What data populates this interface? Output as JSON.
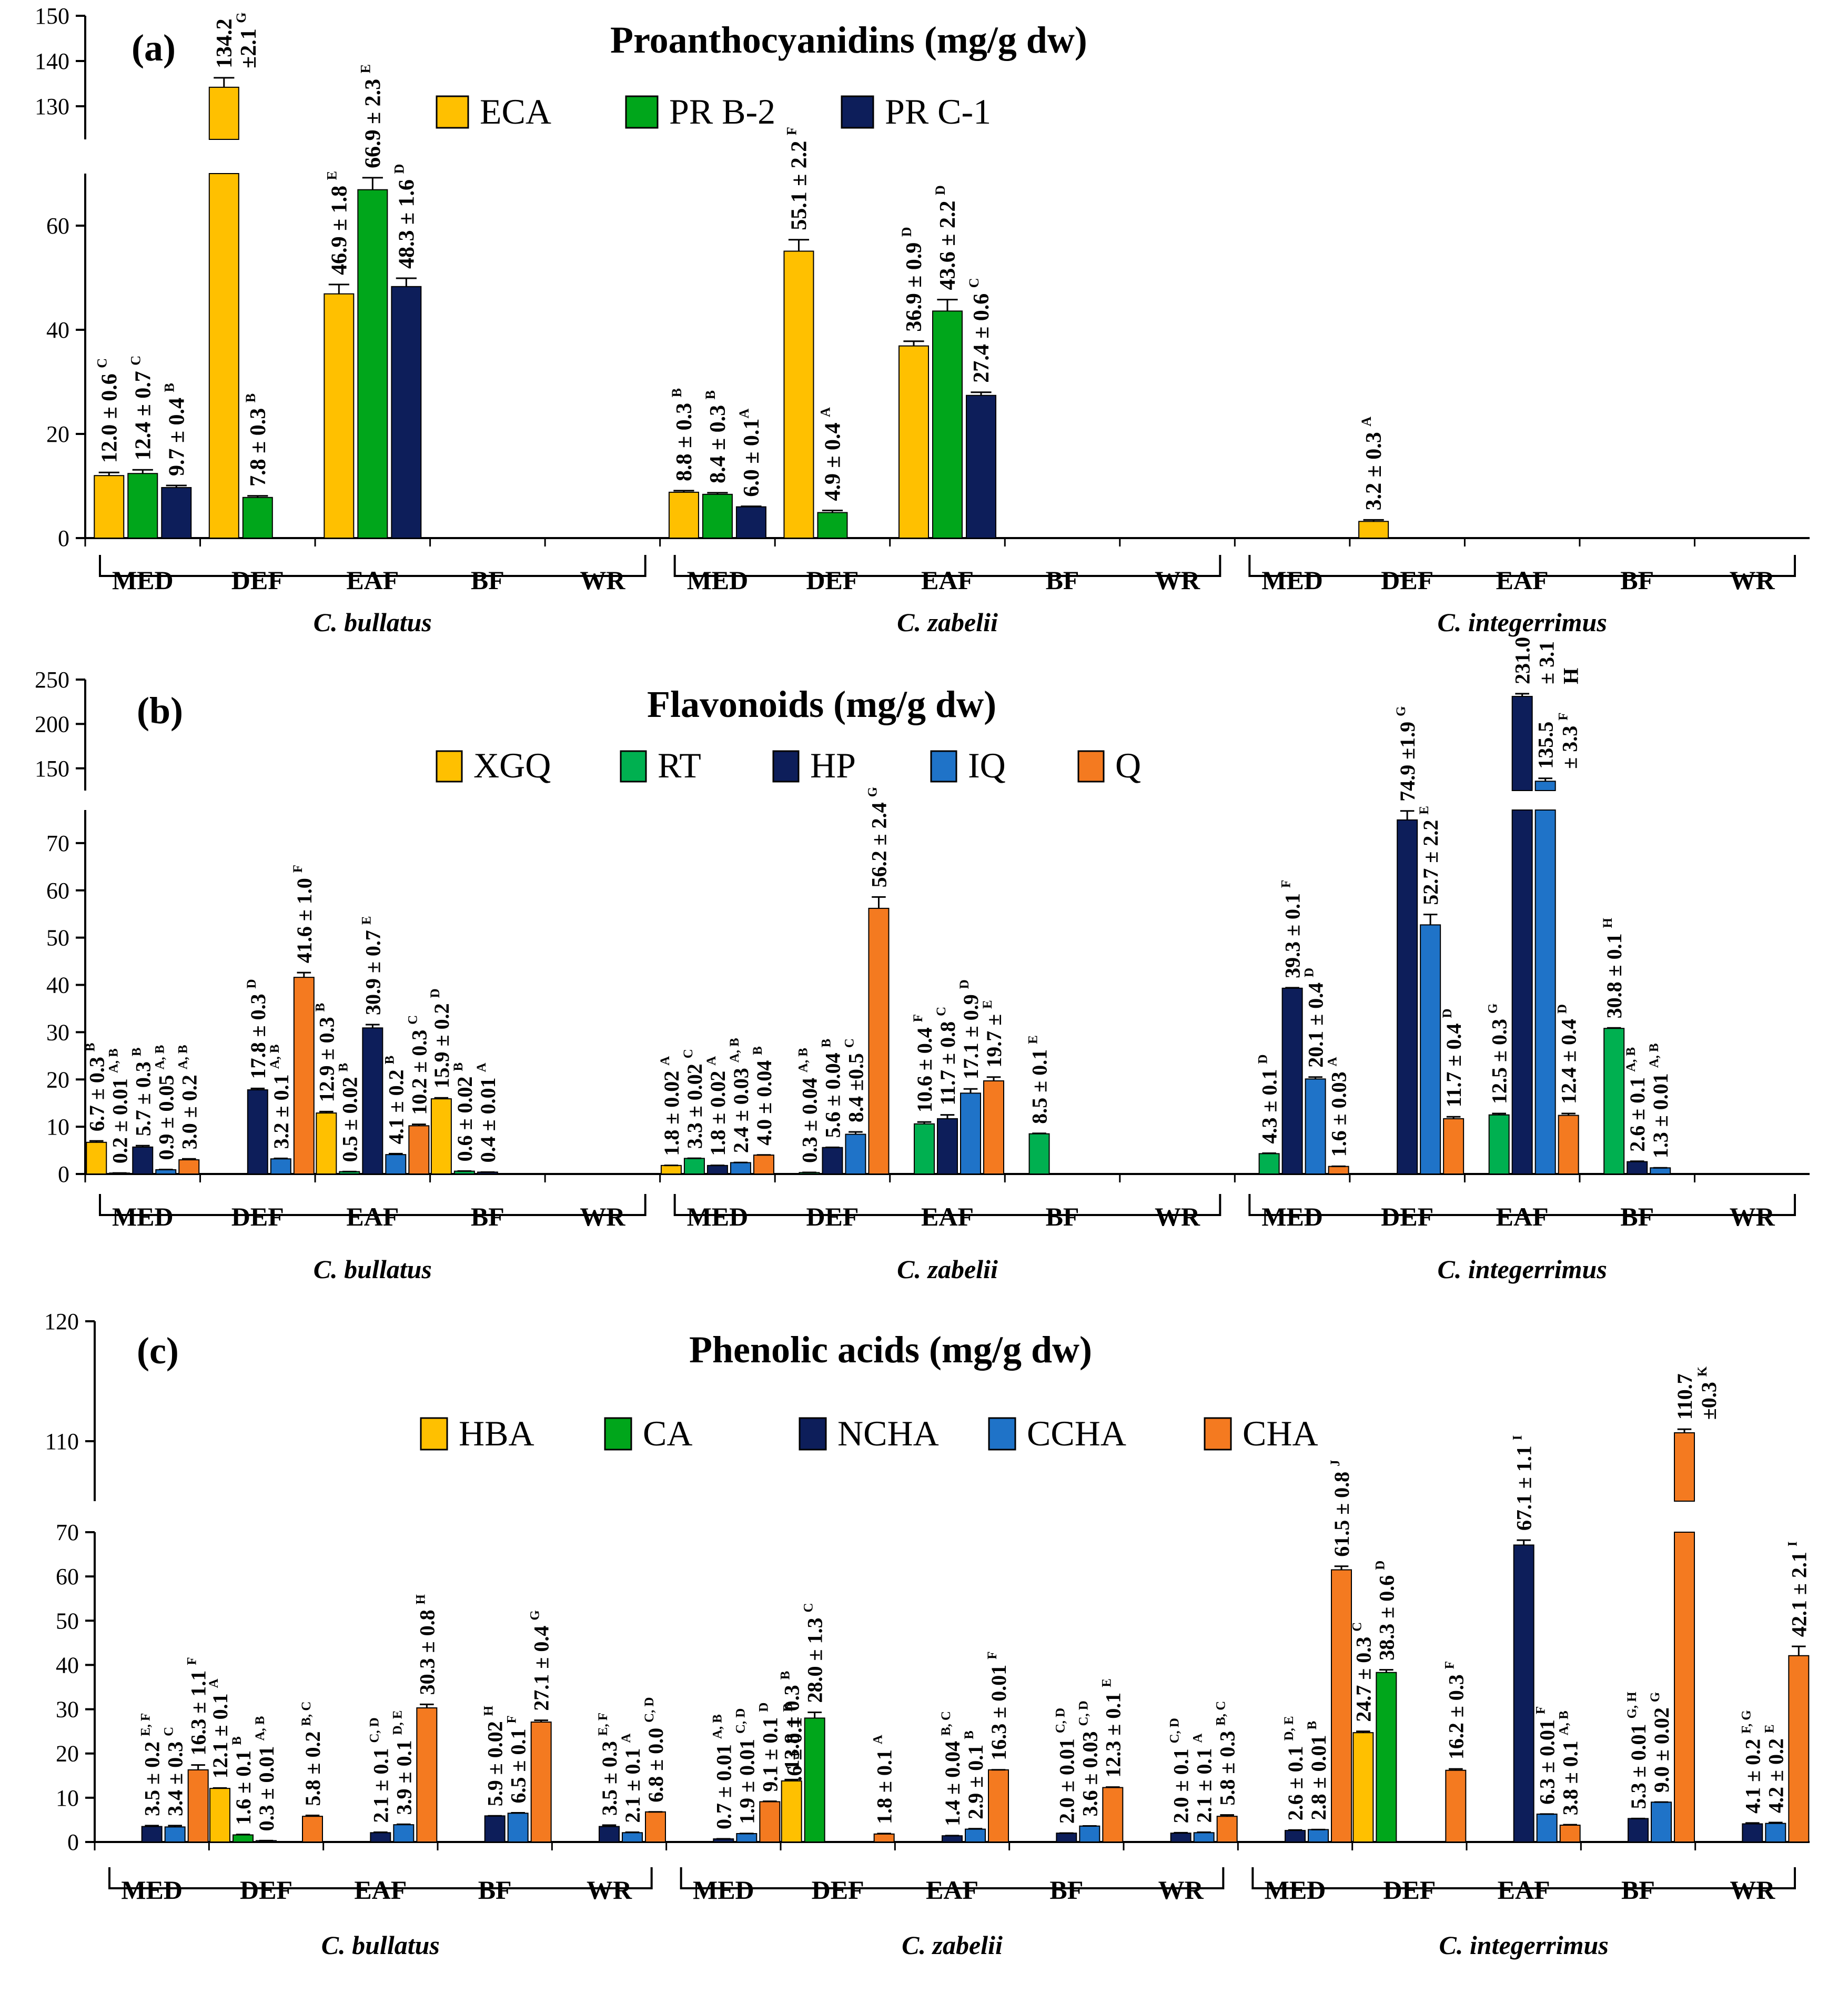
{
  "colors": {
    "ECA": "#FFC000",
    "PRB2": "#00A61B",
    "PRC1": "#0D1E5A",
    "XGQ": "#FFC000",
    "RT": "#00B050",
    "HP": "#0D1E5A",
    "IQ": "#1F73C8",
    "Q": "#F47A20",
    "HBA": "#FFC000",
    "CA": "#00A61B",
    "NCHA": "#0D1E5A",
    "CCHA": "#1F73C8",
    "CHA": "#F47A20"
  },
  "chart_data": [
    {
      "type": "bar",
      "panel": "(a)",
      "title": "Proanthocyanidins (mg/g dw)",
      "legend_position": "top-center",
      "fractions": [
        "MED",
        "DEF",
        "EAF",
        "BF",
        "WR"
      ],
      "groups": [
        "C. bullatus",
        "C. zabelii",
        "C. integerrimus"
      ],
      "yticks_lower": [
        "0",
        "20",
        "40",
        "60"
      ],
      "yticks_upper": [
        "130",
        "140",
        "150"
      ],
      "series": [
        {
          "name": "ECA",
          "color_key": "ECA",
          "values": [
            12.0,
            134.2,
            46.9,
            null,
            null,
            8.8,
            55.1,
            36.9,
            null,
            null,
            null,
            3.2,
            null,
            null,
            null
          ],
          "errors": [
            0.6,
            2.1,
            1.8,
            null,
            null,
            0.3,
            2.2,
            0.9,
            null,
            null,
            null,
            0.3,
            null,
            null,
            null
          ],
          "labels": [
            "12.0 ± 0.6 ^C",
            [
              "134.2",
              "±2.1 ^G"
            ],
            "46.9 ± 1.8 ^E",
            null,
            null,
            "8.8 ± 0.3 ^B",
            "55.1 ± 2.2 ^F",
            "36.9 ± 0.9 ^D",
            null,
            null,
            null,
            "3.2 ± 0.3 ^A",
            null,
            null,
            null
          ]
        },
        {
          "name": "PR B-2",
          "color_key": "PRB2",
          "values": [
            12.4,
            7.8,
            66.9,
            null,
            null,
            8.4,
            4.9,
            43.6,
            null,
            null,
            null,
            null,
            null,
            null,
            null
          ],
          "errors": [
            0.7,
            0.3,
            2.3,
            null,
            null,
            0.3,
            0.4,
            2.2,
            null,
            null,
            null,
            null,
            null,
            null,
            null
          ],
          "labels": [
            "12.4 ± 0.7 ^C",
            "7.8 ± 0.3 ^B",
            "66.9 ± 2.3 ^E",
            null,
            null,
            "8.4 ± 0.3 ^B",
            "4.9 ± 0.4 ^A",
            "43.6 ± 2.2 ^D",
            null,
            null,
            null,
            null,
            null,
            null,
            null
          ]
        },
        {
          "name": "PR C-1",
          "color_key": "PRC1",
          "values": [
            9.7,
            null,
            48.3,
            null,
            null,
            6.0,
            null,
            27.4,
            null,
            null,
            null,
            null,
            null,
            null,
            null
          ],
          "errors": [
            0.4,
            null,
            1.6,
            null,
            null,
            0.1,
            null,
            0.6,
            null,
            null,
            null,
            null,
            null,
            null,
            null
          ],
          "labels": [
            "9.7 ± 0.4 ^B",
            null,
            "48.3 ± 1.6 ^D",
            null,
            null,
            "6.0 ± 0.1^A",
            null,
            "27.4 ± 0.6 ^C",
            null,
            null,
            null,
            null,
            null,
            null,
            null
          ]
        }
      ]
    },
    {
      "type": "bar",
      "panel": "(b)",
      "title": "Flavonoids (mg/g dw)",
      "legend_position": "top-center",
      "fractions": [
        "MED",
        "DEF",
        "EAF",
        "BF",
        "WR"
      ],
      "groups": [
        "C. bullatus",
        "C. zabelii",
        "C. integerrimus"
      ],
      "yticks_lower": [
        "0",
        "10",
        "20",
        "30",
        "40",
        "50",
        "60",
        "70"
      ],
      "yticks_upper": [
        "150",
        "200",
        "250"
      ],
      "series": [
        {
          "name": "XGQ",
          "color_key": "XGQ",
          "values": [
            6.7,
            null,
            12.9,
            15.9,
            null,
            1.8,
            null,
            null,
            null,
            null,
            null,
            null,
            null,
            null,
            null
          ],
          "errors": [
            0.3,
            null,
            0.3,
            0.2,
            null,
            0.02,
            null,
            null,
            null,
            null,
            null,
            null,
            null,
            null,
            null
          ],
          "labels": [
            "6.7 ± 0.3 ^B",
            null,
            "12.9 ± 0.3 ^B",
            "15.9 ± 0.2 ^D",
            null,
            "1.8 ± 0.02 ^A",
            null,
            null,
            null,
            null,
            null,
            null,
            null,
            null,
            null
          ]
        },
        {
          "name": "RT",
          "color_key": "RT",
          "values": [
            0.2,
            null,
            0.5,
            0.6,
            null,
            3.3,
            0.3,
            10.6,
            8.5,
            null,
            4.3,
            null,
            12.5,
            30.8,
            null
          ],
          "errors": [
            0.01,
            null,
            0.02,
            0.02,
            null,
            0.02,
            0.04,
            0.4,
            0.1,
            null,
            0.1,
            null,
            0.3,
            0.1,
            null
          ],
          "labels": [
            "0.2 ± 0.01 ^A, B",
            null,
            "0.5 ± 0.02 ^B",
            "0.6 ± 0.02 ^B",
            null,
            "3.3 ± 0.02 ^C",
            "0.3 ± 0.04 ^A, B",
            "10.6 ± 0.4 ^F",
            "8.5 ± 0.1 ^E",
            null,
            "4.3 ± 0.1 ^D",
            null,
            "12.5 ± 0.3 ^G",
            "30.8 ± 0.1 ^H",
            null
          ]
        },
        {
          "name": "HP",
          "color_key": "HP",
          "values": [
            5.7,
            17.8,
            30.9,
            0.4,
            null,
            1.8,
            5.6,
            11.7,
            null,
            null,
            39.3,
            74.9,
            231.0,
            2.6,
            null
          ],
          "errors": [
            0.3,
            0.3,
            0.7,
            0.01,
            null,
            0.02,
            0.04,
            0.8,
            null,
            null,
            0.1,
            1.9,
            3.1,
            0.1,
            null
          ],
          "labels": [
            "5.7 ± 0.3 ^B",
            "17.8 ± 0.3 ^D",
            "30.9 ± 0.7 ^E",
            "0.4 ± 0.01 ^A",
            null,
            "1.8 ± 0.02 ^A",
            "5.6 ± 0.04 ^B",
            "11.7 ± 0.8 ^C",
            null,
            null,
            "39.3 ± 0.1 ^F",
            "74.9 ±1.9 ^G",
            [
              "231.0",
              "± 3.1",
              "H"
            ],
            "2.6 ± 0.1 ^A, B",
            null
          ]
        },
        {
          "name": "IQ",
          "color_key": "IQ",
          "values": [
            0.9,
            3.2,
            4.1,
            null,
            null,
            2.4,
            8.4,
            17.1,
            null,
            null,
            20.1,
            52.7,
            135.5,
            1.3,
            null
          ],
          "errors": [
            0.05,
            0.1,
            0.2,
            null,
            null,
            0.03,
            0.5,
            0.9,
            null,
            null,
            0.4,
            2.2,
            3.3,
            0.01,
            null
          ],
          "labels": [
            "0.9 ± 0.05 ^A, B",
            "3.2 ± 0.1 ^A, B",
            "4.1 ± 0.2 ^B",
            null,
            null,
            "2.4 ± 0.03 ^A, B",
            "8.4 ±0.5 ^C",
            "17.1 ± 0.9 ^D",
            null,
            null,
            "20.1 ± 0.4 ^D",
            "52.7 ± 2.2 ^E",
            [
              "135.5",
              "± 3.3 ^F"
            ],
            "1.3 ± 0.01 ^A, B",
            null
          ]
        },
        {
          "name": "Q",
          "color_key": "Q",
          "values": [
            3.0,
            41.6,
            10.2,
            null,
            null,
            4.0,
            56.2,
            19.7,
            null,
            null,
            1.6,
            11.7,
            12.4,
            null,
            null
          ],
          "errors": [
            0.2,
            1.0,
            0.3,
            null,
            null,
            0.04,
            2.4,
            0.8,
            null,
            null,
            0.03,
            0.4,
            0.4,
            null,
            null
          ],
          "labels": [
            "3.0 ± 0.2 ^A, B",
            "41.6 ± 1.0 ^F",
            "10.2 ± 0.3 ^C",
            null,
            null,
            "4.0 ± 0.04 ^B",
            "56.2 ± 2.4 ^G",
            "19.7 ± ^E",
            null,
            null,
            "1.6 ± 0.03 ^A",
            "11.7 ± 0.4 ^D",
            "12.4 ± 0.4 ^D",
            null,
            null
          ]
        }
      ]
    },
    {
      "type": "bar",
      "panel": "(c)",
      "title": "Phenolic acids (mg/g dw)",
      "legend_position": "top-center",
      "fractions": [
        "MED",
        "DEF",
        "EAF",
        "BF",
        "WR"
      ],
      "groups": [
        "C. bullatus",
        "C. zabelii",
        "C. integerrimus"
      ],
      "yticks_lower": [
        "0",
        "10",
        "20",
        "30",
        "40",
        "50",
        "60",
        "70"
      ],
      "yticks_upper": [
        "110",
        "120"
      ],
      "series": [
        {
          "name": "HBA",
          "color_key": "HBA",
          "values": [
            null,
            12.1,
            null,
            null,
            null,
            null,
            13.8,
            null,
            null,
            null,
            null,
            24.7,
            null,
            null,
            null
          ],
          "errors": [
            null,
            0.1,
            null,
            null,
            null,
            null,
            0.3,
            null,
            null,
            null,
            null,
            0.3,
            null,
            null,
            null
          ],
          "labels": [
            null,
            "12.1 ± 0.1 ^A",
            null,
            null,
            null,
            null,
            "13.8 ± 0.3 ^B",
            null,
            null,
            null,
            null,
            "24.7 ± 0.3 ^C",
            null,
            null,
            null
          ]
        },
        {
          "name": "CA",
          "color_key": "CA",
          "values": [
            null,
            1.6,
            null,
            null,
            null,
            null,
            28.0,
            null,
            null,
            null,
            null,
            38.3,
            null,
            null,
            null
          ],
          "errors": [
            null,
            0.1,
            null,
            null,
            null,
            null,
            1.3,
            null,
            null,
            null,
            null,
            0.6,
            null,
            null,
            null
          ],
          "labels": [
            null,
            "1.6 ± 0.1 ^B",
            null,
            null,
            null,
            null,
            "28.0 ± 1.3 ^C",
            null,
            null,
            null,
            null,
            "38.3 ± 0.6 ^D",
            null,
            null,
            null
          ]
        },
        {
          "name": "NCHA",
          "color_key": "NCHA",
          "values": [
            3.5,
            0.3,
            2.1,
            5.9,
            3.5,
            0.7,
            null,
            1.4,
            2.0,
            2.0,
            2.6,
            null,
            67.1,
            5.3,
            4.1
          ],
          "errors": [
            0.2,
            0.01,
            0.1,
            0.02,
            0.3,
            0.01,
            null,
            0.04,
            0.01,
            0.1,
            0.1,
            null,
            1.1,
            0.01,
            0.2
          ],
          "labels": [
            "3.5 ± 0.2 ^E, F",
            "0.3 ± 0.01 ^A, B",
            "2.1 ± 0.1 ^C, D",
            "5.9 ± 0.02 ^H",
            "3.5 ± 0.3 ^E, F",
            "0.7 ± 0.01 ^A, B",
            null,
            "1.4 ± 0.04 ^B, C",
            "2.0 ± 0.01 ^C, D",
            "2.0 ± 0.1 ^C, D",
            "2.6 ± 0.1 ^D, E",
            null,
            "67.1 ± 1.1 ^I",
            "5.3 ± 0.01 ^G, H",
            "4.1 ± 0.2 ^F, G"
          ]
        },
        {
          "name": "CCHA",
          "color_key": "CCHA",
          "values": [
            3.4,
            null,
            3.9,
            6.5,
            2.1,
            1.9,
            null,
            2.9,
            3.6,
            2.1,
            2.8,
            null,
            6.3,
            9.0,
            4.2
          ],
          "errors": [
            0.3,
            null,
            0.1,
            0.1,
            0.1,
            0.01,
            null,
            0.1,
            0.03,
            0.1,
            0.01,
            null,
            0.01,
            0.02,
            0.2
          ],
          "labels": [
            "3.4 ± 0.3 ^C",
            null,
            "3.9 ± 0.1 ^D, E",
            "6.5 ± 0.1 ^F",
            "2.1 ± 0.1 ^A",
            "1.9 ± 0.01 ^C, D",
            null,
            "2.9 ± 0.1 ^B",
            "3.6 ± 0.03 ^C, D",
            "2.1 ± 0.1 ^A",
            "2.8 ± 0.01 ^B",
            null,
            "6.3 ± 0.01 ^F",
            "9.0 ± 0.02 ^G",
            "4.2 ± 0.2 ^E"
          ]
        },
        {
          "name": "CHA",
          "color_key": "CHA",
          "values": [
            16.3,
            5.8,
            30.3,
            27.1,
            6.8,
            9.1,
            1.8,
            16.3,
            12.3,
            5.8,
            61.5,
            16.2,
            3.8,
            110.7,
            42.1
          ],
          "errors": [
            1.1,
            0.2,
            0.8,
            0.4,
            0.0,
            0.1,
            0.1,
            0.01,
            0.1,
            0.3,
            0.8,
            0.3,
            0.1,
            0.3,
            2.1
          ],
          "labels": [
            "16.3 ± 1.1 ^F",
            "5.8 ± 0.2 ^B, C",
            "30.3 ± 0.8 ^H",
            "27.1 ± 0.4 ^G",
            "6.8 ± 0.0 ^C, D",
            [
              "9.1 ± 0.1 ^D",
              "2.6 ± 0.1 ^B"
            ],
            "1.8 ± 0.1 ^A",
            "16.3 ± 0.01 ^F",
            "12.3 ± 0.1 ^E",
            "5.8 ± 0.3 ^B, C",
            "61.5 ± 0.8 ^J",
            "16.2 ± 0.3 ^F",
            "3.8 ± 0.1 ^A, B",
            [
              "110.7",
              "±0.3 ^K"
            ],
            "42.1 ± 2.1 ^I"
          ]
        }
      ]
    }
  ]
}
